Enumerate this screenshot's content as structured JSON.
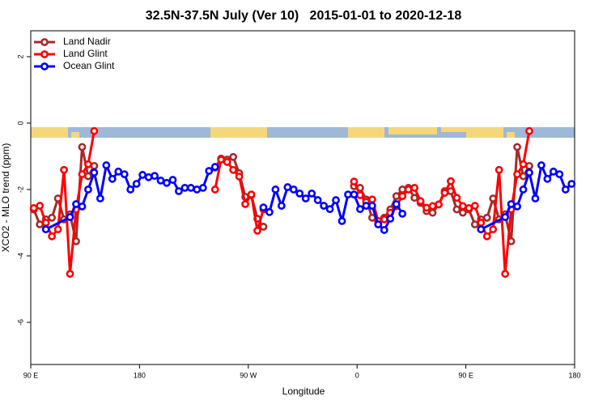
{
  "chart_data": {
    "type": "line",
    "title": "32.5N-37.5N July (Ver 10)   2015-01-01 to 2020-12-18",
    "x_label": "Longitude",
    "y_label": "XCO2 - MLO trend (ppm)",
    "xlim": [
      90,
      540
    ],
    "ylim": [
      -7.27,
      2.78
    ],
    "xticks": [
      {
        "value": 90,
        "label": "90 E"
      },
      180,
      {
        "value": 270,
        "label": "90 W"
      },
      {
        "value": 360,
        "label": "0"
      },
      {
        "value": 450,
        "label": "90 E"
      },
      {
        "value": 540,
        "label": "180"
      }
    ],
    "yticks": [
      2,
      0,
      -2,
      -4,
      -6
    ],
    "legend": "top-left",
    "series": [
      {
        "name": "Land Nadir",
        "color": "#a52a2a",
        "x": [
          92.5,
          97.5,
          102.5,
          107.5,
          112.5,
          117.5,
          122.5,
          127.5,
          132.5,
          137.5,
          142.5,
          192.5,
          242.5,
          247.5,
          252.5,
          257.5,
          262.5,
          267.5,
          272.5,
          277.5,
          282.5,
          320,
          357.5,
          362.5,
          367.5,
          372.5,
          377.5,
          382.5,
          387.5,
          392.5,
          397.5,
          402.5,
          407.5,
          412.5,
          417.5,
          422.5,
          427.5,
          432.5,
          437.5,
          442.5,
          447.5,
          452.5,
          457.5,
          462.5,
          467.5,
          472.5,
          477.5,
          482.5,
          487.5,
          492.5,
          497.5,
          502.5
        ],
        "values": [
          -2.6,
          -3.05,
          -2.9,
          -2.85,
          -2.27,
          -2.9,
          -2.75,
          -3.56,
          -0.72,
          -1.6,
          -1.29,
          null,
          -1.34,
          -1.07,
          -1.1,
          -1.02,
          -1.51,
          -2.22,
          -2.17,
          -2.88,
          -3.12,
          null,
          -1.9,
          -1.95,
          -2.3,
          -2.85,
          -3.05,
          -2.85,
          -2.6,
          -2.2,
          -2.0,
          -1.95,
          -2.25,
          -2.4,
          -2.65,
          -2.7,
          -2.45,
          -2.05,
          -2.05,
          -2.6,
          -2.7,
          -2.6,
          -3.05,
          -2.9,
          -2.85,
          -2.27,
          -2.9,
          -2.75,
          -3.56,
          -0.72,
          -1.6,
          -1.29
        ]
      },
      {
        "name": "Land Glint",
        "color": "#ff0000",
        "x": [
          92.5,
          97.5,
          102.5,
          107.5,
          112.5,
          117.5,
          122.5,
          127.5,
          132.5,
          137.5,
          142.5,
          192.5,
          242.5,
          247.5,
          252.5,
          257.5,
          262.5,
          267.5,
          272.5,
          277.5,
          282.5,
          320,
          357.5,
          362.5,
          367.5,
          372.5,
          377.5,
          382.5,
          387.5,
          392.5,
          397.5,
          402.5,
          407.5,
          412.5,
          417.5,
          422.5,
          427.5,
          432.5,
          437.5,
          442.5,
          447.5,
          452.5,
          457.5,
          462.5,
          467.5,
          472.5,
          477.5,
          482.5,
          487.5,
          492.5,
          497.5,
          502.5
        ],
        "values": [
          -2.56,
          -2.49,
          -3.0,
          -3.41,
          -3.2,
          -1.41,
          -4.54,
          -2.6,
          -1.54,
          -1.24,
          -0.24,
          null,
          -2.0,
          -1.1,
          -1.17,
          -1.41,
          -1.61,
          -2.44,
          -2.15,
          -3.24,
          -2.6,
          null,
          -1.76,
          -2.17,
          -2.37,
          -2.3,
          -2.95,
          -2.9,
          -2.7,
          -2.5,
          -2.2,
          -2.0,
          -1.95,
          -2.35,
          -2.55,
          -2.5,
          -2.45,
          -2.1,
          -1.75,
          -2.25,
          -2.5,
          -2.56,
          -2.49,
          -3.0,
          -3.41,
          -3.2,
          -1.41,
          -4.54,
          -2.6,
          -1.54,
          -1.24,
          -0.24
        ]
      },
      {
        "name": "Ocean Glint",
        "color": "#0000ff",
        "x": [
          102.5,
          122.5,
          127.5,
          132.5,
          137.5,
          142.5,
          147.5,
          152.5,
          157.5,
          162.5,
          167.5,
          172.5,
          177.5,
          182.5,
          187.5,
          192.5,
          197.5,
          202.5,
          207.5,
          212.5,
          217.5,
          222.5,
          227.5,
          232.5,
          237.5,
          242.5,
          262.5,
          282.5,
          287.5,
          292.5,
          297.5,
          302.5,
          307.5,
          312.5,
          317.5,
          322.5,
          327.5,
          332.5,
          337.5,
          342.5,
          347.5,
          352.5,
          357.5,
          362.5,
          367.5,
          372.5,
          377.5,
          382.5,
          387.5,
          392.5,
          397.5,
          430,
          462.5,
          482.5,
          487.5,
          492.5,
          497.5,
          502.5,
          507.5,
          512.5,
          517.5,
          522.5,
          527.5,
          532.5,
          537.5
        ],
        "values": [
          -3.2,
          -2.83,
          -2.44,
          -2.51,
          -2.0,
          -1.49,
          -2.27,
          -1.27,
          -1.68,
          -1.46,
          -1.54,
          -2.0,
          -1.83,
          -1.56,
          -1.63,
          -1.59,
          -1.73,
          -1.8,
          -1.71,
          -2.05,
          -1.95,
          -1.95,
          -2.0,
          -1.95,
          -1.44,
          -1.32,
          null,
          -2.54,
          -2.68,
          -2.0,
          -2.49,
          -1.93,
          -2.0,
          -2.12,
          -2.27,
          -2.12,
          -2.32,
          -2.49,
          -2.59,
          -2.32,
          -2.95,
          -2.15,
          -2.15,
          -2.59,
          -2.49,
          -2.49,
          -3.05,
          -3.22,
          -2.88,
          -2.44,
          -2.73,
          null,
          -3.2,
          -2.83,
          -2.44,
          -2.51,
          -2.0,
          -1.49,
          -2.27,
          -1.27,
          -1.68,
          -1.46,
          -1.54,
          -2.0,
          -1.83
        ]
      }
    ]
  }
}
